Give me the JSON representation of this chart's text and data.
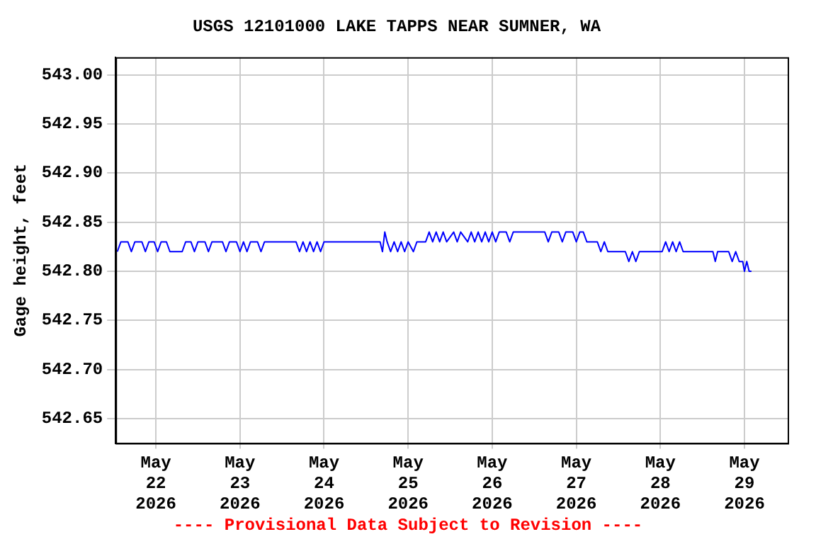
{
  "chart_data": {
    "type": "line",
    "title": "USGS 12101000 LAKE TAPPS NEAR SUMNER, WA",
    "ylabel": "Gage height, feet",
    "annotations": [
      "---- Provisional Data Subject to Revision ----"
    ],
    "xlim": [
      "2026-05-21T12:30",
      "2026-05-29T12:20"
    ],
    "xticks": [
      {
        "value": "2026-05-22",
        "label": "May 22 2026"
      },
      {
        "value": "2026-05-23",
        "label": "May 23 2026"
      },
      {
        "value": "2026-05-24",
        "label": "May 24 2026"
      },
      {
        "value": "2026-05-25",
        "label": "May 25 2026"
      },
      {
        "value": "2026-05-26",
        "label": "May 26 2026"
      },
      {
        "value": "2026-05-27",
        "label": "May 27 2026"
      },
      {
        "value": "2026-05-28",
        "label": "May 28 2026"
      },
      {
        "value": "2026-05-29",
        "label": "May 29 2026"
      }
    ],
    "ylim": [
      542.625,
      543.018
    ],
    "yticks": [
      {
        "value": 542.65,
        "label": "542.65"
      },
      {
        "value": 542.7,
        "label": "542.70"
      },
      {
        "value": 542.75,
        "label": "542.75"
      },
      {
        "value": 542.8,
        "label": "542.80"
      },
      {
        "value": 542.85,
        "label": "542.85"
      },
      {
        "value": 542.9,
        "label": "542.90"
      },
      {
        "value": 542.95,
        "label": "542.95"
      },
      {
        "value": 543.0,
        "label": "543.00"
      }
    ],
    "grid": true,
    "legend": false,
    "marker": "none",
    "line_style": "solid",
    "x": [
      "2026-05-21T13:00",
      "2026-05-21T14:00",
      "2026-05-21T16:00",
      "2026-05-21T17:00",
      "2026-05-21T18:00",
      "2026-05-21T20:00",
      "2026-05-21T21:00",
      "2026-05-21T22:00",
      "2026-05-21T23:30",
      "2026-05-22T00:30",
      "2026-05-22T01:30",
      "2026-05-22T03:00",
      "2026-05-22T04:00",
      "2026-05-22T05:00",
      "2026-05-22T07:30",
      "2026-05-22T08:30",
      "2026-05-22T10:00",
      "2026-05-22T11:00",
      "2026-05-22T12:00",
      "2026-05-22T14:00",
      "2026-05-22T15:00",
      "2026-05-22T16:00",
      "2026-05-22T19:00",
      "2026-05-22T20:00",
      "2026-05-22T21:00",
      "2026-05-22T23:00",
      "2026-05-23T00:00",
      "2026-05-23T01:00",
      "2026-05-23T02:00",
      "2026-05-23T03:00",
      "2026-05-23T05:00",
      "2026-05-23T06:00",
      "2026-05-23T07:00",
      "2026-05-23T16:00",
      "2026-05-23T17:00",
      "2026-05-23T18:00",
      "2026-05-23T19:00",
      "2026-05-23T20:00",
      "2026-05-23T21:00",
      "2026-05-23T22:00",
      "2026-05-23T23:00",
      "2026-05-24T00:00",
      "2026-05-24T16:00",
      "2026-05-24T16:40",
      "2026-05-24T17:20",
      "2026-05-24T18:00",
      "2026-05-24T19:00",
      "2026-05-24T20:00",
      "2026-05-24T21:00",
      "2026-05-24T22:00",
      "2026-05-24T23:00",
      "2026-05-25T00:00",
      "2026-05-25T01:30",
      "2026-05-25T02:30",
      "2026-05-25T05:00",
      "2026-05-25T06:00",
      "2026-05-25T07:00",
      "2026-05-25T08:00",
      "2026-05-25T09:00",
      "2026-05-25T10:00",
      "2026-05-25T11:00",
      "2026-05-25T13:00",
      "2026-05-25T14:00",
      "2026-05-25T15:00",
      "2026-05-25T17:00",
      "2026-05-25T18:00",
      "2026-05-25T19:00",
      "2026-05-25T20:00",
      "2026-05-25T21:00",
      "2026-05-25T22:00",
      "2026-05-25T23:00",
      "2026-05-26T00:00",
      "2026-05-26T01:00",
      "2026-05-26T02:00",
      "2026-05-26T04:00",
      "2026-05-26T05:00",
      "2026-05-26T06:00",
      "2026-05-26T15:00",
      "2026-05-26T16:00",
      "2026-05-26T17:00",
      "2026-05-26T19:00",
      "2026-05-26T20:00",
      "2026-05-26T21:00",
      "2026-05-26T23:00",
      "2026-05-27T00:00",
      "2026-05-27T01:00",
      "2026-05-27T02:00",
      "2026-05-27T03:00",
      "2026-05-27T06:00",
      "2026-05-27T07:00",
      "2026-05-27T08:00",
      "2026-05-27T09:00",
      "2026-05-27T10:00",
      "2026-05-27T14:00",
      "2026-05-27T15:00",
      "2026-05-27T16:00",
      "2026-05-27T17:00",
      "2026-05-27T18:00",
      "2026-05-28T00:30",
      "2026-05-28T01:30",
      "2026-05-28T02:30",
      "2026-05-28T03:30",
      "2026-05-28T04:30",
      "2026-05-28T05:30",
      "2026-05-28T06:30",
      "2026-05-28T15:00",
      "2026-05-28T15:40",
      "2026-05-28T16:20",
      "2026-05-28T19:30",
      "2026-05-28T20:30",
      "2026-05-28T21:30",
      "2026-05-28T22:30",
      "2026-05-28T23:30",
      "2026-05-29T00:00",
      "2026-05-29T00:40",
      "2026-05-29T01:20",
      "2026-05-29T02:00"
    ],
    "series": [
      {
        "color": "#0000ff",
        "values": [
          542.82,
          542.83,
          542.83,
          542.82,
          542.83,
          542.83,
          542.82,
          542.83,
          542.83,
          542.82,
          542.83,
          542.83,
          542.82,
          542.82,
          542.82,
          542.83,
          542.83,
          542.82,
          542.83,
          542.83,
          542.82,
          542.83,
          542.83,
          542.82,
          542.83,
          542.83,
          542.82,
          542.83,
          542.82,
          542.83,
          542.83,
          542.82,
          542.83,
          542.83,
          542.82,
          542.83,
          542.82,
          542.83,
          542.82,
          542.83,
          542.82,
          542.83,
          542.83,
          542.82,
          542.84,
          542.83,
          542.82,
          542.83,
          542.82,
          542.83,
          542.82,
          542.83,
          542.82,
          542.83,
          542.83,
          542.84,
          542.83,
          542.84,
          542.83,
          542.84,
          542.83,
          542.84,
          542.83,
          542.84,
          542.83,
          542.84,
          542.83,
          542.84,
          542.83,
          542.84,
          542.83,
          542.84,
          542.83,
          542.84,
          542.84,
          542.83,
          542.84,
          542.84,
          542.83,
          542.84,
          542.84,
          542.83,
          542.84,
          542.84,
          542.83,
          542.84,
          542.84,
          542.83,
          542.83,
          542.82,
          542.83,
          542.82,
          542.82,
          542.82,
          542.81,
          542.82,
          542.81,
          542.82,
          542.82,
          542.83,
          542.82,
          542.83,
          542.82,
          542.83,
          542.82,
          542.82,
          542.81,
          542.82,
          542.82,
          542.81,
          542.82,
          542.81,
          542.81,
          542.8,
          542.81,
          542.8,
          542.8
        ]
      }
    ]
  }
}
